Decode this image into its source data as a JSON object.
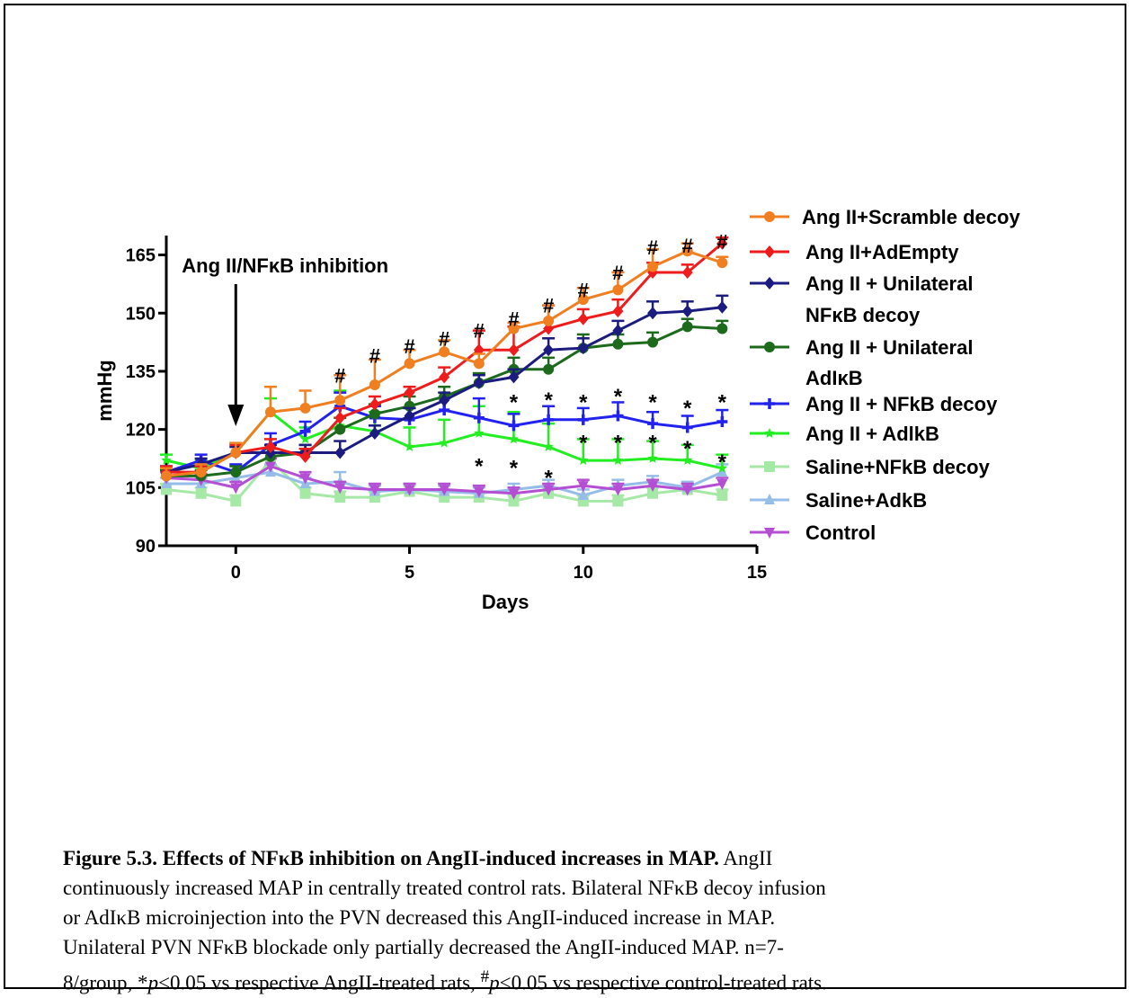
{
  "chart_data": {
    "type": "line",
    "xlabel": "Days",
    "ylabel": "mmHg",
    "xlim": [
      -2,
      15
    ],
    "ylim": [
      90,
      170
    ],
    "xticks": [
      0,
      5,
      10,
      15
    ],
    "yticks": [
      90,
      105,
      120,
      135,
      150,
      165
    ],
    "grid": false,
    "legend_position": "right",
    "annotation": {
      "text": "Ang II/NFκB inhibition",
      "x": 0
    },
    "x": [
      -2,
      -1,
      0,
      1,
      2,
      3,
      4,
      5,
      6,
      7,
      8,
      9,
      10,
      11,
      12,
      13,
      14
    ],
    "series": [
      {
        "name": "Ang II+Scramble decoy",
        "color": "#f07f22",
        "marker": "circle",
        "values": [
          108,
          109,
          114,
          124.5,
          125.5,
          127.5,
          131.5,
          137,
          140,
          137,
          146,
          148,
          153.5,
          156,
          162,
          166,
          163
        ],
        "errors": [
          2,
          2,
          2.5,
          6.5,
          4.5,
          6.5,
          6.5,
          3.5,
          3,
          2.5,
          1.5,
          4,
          3,
          4.5,
          4.5,
          2,
          1.5
        ]
      },
      {
        "name": "Ang II+AdEmpty",
        "color": "#ee1c1c",
        "marker": "diamond",
        "values": [
          109,
          109,
          114,
          115.5,
          113,
          123,
          126.5,
          129.5,
          133.5,
          140.5,
          140.5,
          146,
          148.5,
          150.5,
          160.5,
          160.5,
          168
        ],
        "errors": [
          1.5,
          1.5,
          2,
          2,
          2,
          2.5,
          2,
          1.5,
          2.5,
          5,
          6,
          6,
          2.5,
          3,
          2.5,
          2,
          1.5
        ]
      },
      {
        "name": "Ang II + Unilateral",
        "name_line2": "NFκB decoy",
        "color": "#1b1b80",
        "marker": "diamond",
        "values": [
          109,
          111,
          114,
          114,
          114,
          114,
          119,
          123.5,
          127.5,
          132,
          133.5,
          140.5,
          141,
          145.5,
          150,
          150.5,
          151.5
        ],
        "errors": [
          1.5,
          1.5,
          1.5,
          2,
          2,
          3,
          2,
          2,
          2,
          2,
          2,
          3,
          2.5,
          2.5,
          3,
          2.5,
          3
        ]
      },
      {
        "name": "Ang II + Unilateral",
        "name_line2": "AdIκB",
        "color": "#1d6a1d",
        "marker": "circle",
        "values": [
          108,
          108,
          109,
          113,
          114,
          120,
          124,
          126,
          128.5,
          132,
          135.5,
          135.5,
          141,
          142,
          142.5,
          146.5,
          146
        ],
        "errors": [
          1.5,
          1.5,
          1.5,
          2,
          2,
          3,
          2.5,
          2.5,
          2.5,
          2.5,
          3,
          3,
          3.5,
          2.5,
          2.5,
          2,
          2
        ]
      },
      {
        "name": "Ang II + NFkB decoy",
        "color": "#2222ee",
        "marker": "plus",
        "values": [
          109,
          112,
          109,
          116,
          119.5,
          126,
          123,
          122.5,
          125,
          123,
          121,
          122.5,
          122.5,
          123.5,
          121.5,
          120.5,
          122
        ],
        "errors": [
          1.5,
          1.5,
          2,
          3,
          2.5,
          3.5,
          3,
          3,
          3,
          5,
          3,
          3.5,
          3,
          3.5,
          3,
          3,
          3
        ]
      },
      {
        "name": "Ang II + AdlkB",
        "color": "#22ee22",
        "marker": "star",
        "values": [
          112,
          110,
          114,
          124.5,
          117.5,
          121,
          119.5,
          115.5,
          116.5,
          119,
          117.5,
          115.5,
          112,
          112,
          112.5,
          112,
          110
        ],
        "errors": [
          1.5,
          2,
          2.5,
          3.5,
          3,
          9,
          5,
          5,
          6,
          7,
          7,
          6,
          5.5,
          5.5,
          4.5,
          4,
          3.5
        ]
      },
      {
        "name": "Saline+NFkB decoy",
        "color": "#a6e8a6",
        "marker": "square",
        "values": [
          104.5,
          103.5,
          101.5,
          112,
          103.5,
          102.5,
          102.5,
          104,
          102.5,
          102.5,
          101.5,
          103.5,
          101.5,
          101.5,
          103.5,
          104.5,
          103
        ],
        "errors": [
          1.5,
          1.5,
          1.5,
          2,
          1.5,
          1.5,
          1.5,
          1.5,
          1.5,
          1.5,
          1.5,
          1.5,
          1.5,
          1.5,
          1.5,
          1.5,
          1.5
        ]
      },
      {
        "name": "Saline+AdkB",
        "color": "#96bce8",
        "marker": "triangle-up",
        "values": [
          106,
          106,
          107.5,
          109,
          106,
          106.5,
          104,
          104.5,
          104,
          103.5,
          104.5,
          105.5,
          103,
          105.5,
          106.5,
          105,
          109
        ],
        "errors": [
          1.5,
          1.5,
          2,
          2,
          1.5,
          2.5,
          1.5,
          1.5,
          1.5,
          1.5,
          1.5,
          1.5,
          1.5,
          1.5,
          1.5,
          1.5,
          2
        ]
      },
      {
        "name": "Control",
        "color": "#b44fd4",
        "marker": "triangle-down",
        "values": [
          107.5,
          107,
          105,
          110.5,
          107.5,
          105,
          104.5,
          104.5,
          104.5,
          104,
          103.5,
          104.5,
          105.5,
          104.5,
          105.5,
          104.5,
          106
        ],
        "errors": [
          1.5,
          1.5,
          1.5,
          2,
          1.5,
          1.5,
          1.5,
          1.5,
          1.5,
          1.5,
          1.5,
          1.5,
          1.5,
          1.5,
          1.5,
          1.5,
          1.5
        ]
      }
    ],
    "significance": {
      "hash": {
        "symbol": "#",
        "x": [
          3,
          4,
          5,
          6,
          7,
          8,
          9,
          10,
          11,
          12,
          13,
          14
        ],
        "y": [
          134,
          139,
          141.5,
          143.5,
          145.5,
          148.5,
          152,
          156,
          160.5,
          167,
          167.5,
          168.5
        ]
      },
      "star_upper": {
        "symbol": "*",
        "x": [
          8,
          9,
          10,
          11,
          12,
          13,
          14
        ],
        "y": [
          127.5,
          128,
          127.5,
          129,
          127.5,
          126,
          127.5
        ]
      },
      "star_lower": {
        "symbol": "*",
        "x": [
          7,
          8,
          9,
          10,
          11,
          12,
          13,
          14
        ],
        "y": [
          111,
          110.5,
          108,
          117,
          117,
          117,
          115.5,
          112
        ]
      }
    }
  },
  "caption": {
    "bold": "Figure 5.3. Effects of NFκB inhibition on AngII-induced increases in MAP.",
    "line1_rest": " AngII",
    "line2": "continuously increased MAP in centrally treated control rats. Bilateral NFκB decoy infusion",
    "line3": "or AdIκB microinjection into the PVN decreased this AngII-induced increase in MAP.",
    "line4": "Unilateral PVN NFκB blockade only partially decreased the AngII-induced MAP. n=7-",
    "line5_a": "8/group, *",
    "p": "p",
    "line5_b": "<0.05 vs respective AngII-treated rats, ",
    "hash_sup": "#",
    "line5_c": "<0.05 vs respective control-treated rats."
  }
}
